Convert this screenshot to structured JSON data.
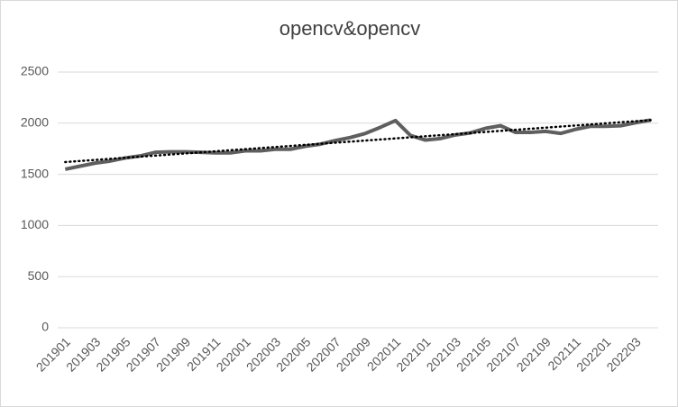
{
  "chart_data": {
    "type": "line",
    "title": "opencv&opencv",
    "categories": [
      "201901",
      null,
      "201903",
      null,
      "201905",
      null,
      "201907",
      null,
      "201909",
      null,
      "201911",
      null,
      "202001",
      null,
      "202003",
      null,
      "202005",
      null,
      "202007",
      null,
      "202009",
      null,
      "202011",
      null,
      "202101",
      null,
      "202103",
      null,
      "202105",
      null,
      "202107",
      null,
      "202109",
      null,
      "202111",
      null,
      "202201",
      null,
      "202203",
      null
    ],
    "series": [
      {
        "color": "#5f5f5f",
        "values": [
          1550,
          1580,
          1610,
          1630,
          1660,
          1680,
          1715,
          1720,
          1720,
          1715,
          1710,
          1710,
          1730,
          1730,
          1745,
          1745,
          1775,
          1795,
          1830,
          1860,
          1900,
          1960,
          2025,
          1880,
          1835,
          1850,
          1885,
          1905,
          1950,
          1975,
          1910,
          1910,
          1920,
          1900,
          1940,
          1970,
          1970,
          1975,
          2005,
          2030
        ]
      }
    ],
    "trend": {
      "color": "#000000",
      "values": [
        1620,
        2030
      ]
    },
    "ylim": [
      0,
      2500
    ],
    "yticks": [
      0,
      500,
      1000,
      1500,
      2000,
      2500
    ],
    "grid": true
  }
}
